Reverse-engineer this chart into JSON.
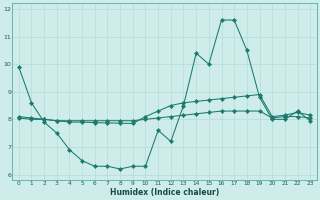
{
  "xlabel": "Humidex (Indice chaleur)",
  "ylabel": "",
  "background_color": "#ceecea",
  "grid_color": "#b8dcd8",
  "line_color": "#1a7a6e",
  "xlim": [
    -0.5,
    23.5
  ],
  "ylim": [
    5.8,
    12.2
  ],
  "yticks": [
    6,
    7,
    8,
    9,
    10,
    11,
    12
  ],
  "xticks": [
    0,
    1,
    2,
    3,
    4,
    5,
    6,
    7,
    8,
    9,
    10,
    11,
    12,
    13,
    14,
    15,
    16,
    17,
    18,
    19,
    20,
    21,
    22,
    23
  ],
  "series": [
    {
      "x": [
        0,
        1,
        2,
        3,
        4,
        5,
        6,
        7,
        8,
        9,
        10,
        11,
        12,
        13,
        14,
        15,
        16,
        17,
        18,
        19,
        20,
        21,
        22,
        23
      ],
      "y": [
        9.9,
        8.6,
        7.9,
        7.5,
        6.9,
        6.5,
        6.3,
        6.3,
        6.2,
        6.3,
        6.3,
        7.6,
        7.2,
        8.5,
        10.4,
        10.0,
        11.6,
        11.6,
        10.5,
        8.8,
        8.0,
        8.0,
        8.3,
        7.95
      ]
    },
    {
      "x": [
        0,
        1,
        2,
        3,
        4,
        5,
        6,
        7,
        8,
        9,
        10,
        11,
        12,
        13,
        14,
        15,
        16,
        17,
        18,
        19,
        20,
        21,
        22,
        23
      ],
      "y": [
        8.05,
        8.0,
        8.0,
        7.95,
        7.95,
        7.95,
        7.95,
        7.95,
        7.95,
        7.95,
        8.0,
        8.05,
        8.1,
        8.15,
        8.2,
        8.25,
        8.3,
        8.3,
        8.3,
        8.3,
        8.05,
        8.1,
        8.1,
        8.05
      ]
    },
    {
      "x": [
        0,
        1,
        2,
        3,
        4,
        5,
        6,
        7,
        8,
        9,
        10,
        11,
        12,
        13,
        14,
        15,
        16,
        17,
        18,
        19,
        20,
        21,
        22,
        23
      ],
      "y": [
        8.1,
        8.05,
        8.0,
        7.95,
        7.9,
        7.9,
        7.88,
        7.87,
        7.86,
        7.85,
        8.1,
        8.3,
        8.5,
        8.6,
        8.65,
        8.7,
        8.75,
        8.8,
        8.85,
        8.9,
        8.1,
        8.15,
        8.25,
        8.15
      ]
    }
  ]
}
